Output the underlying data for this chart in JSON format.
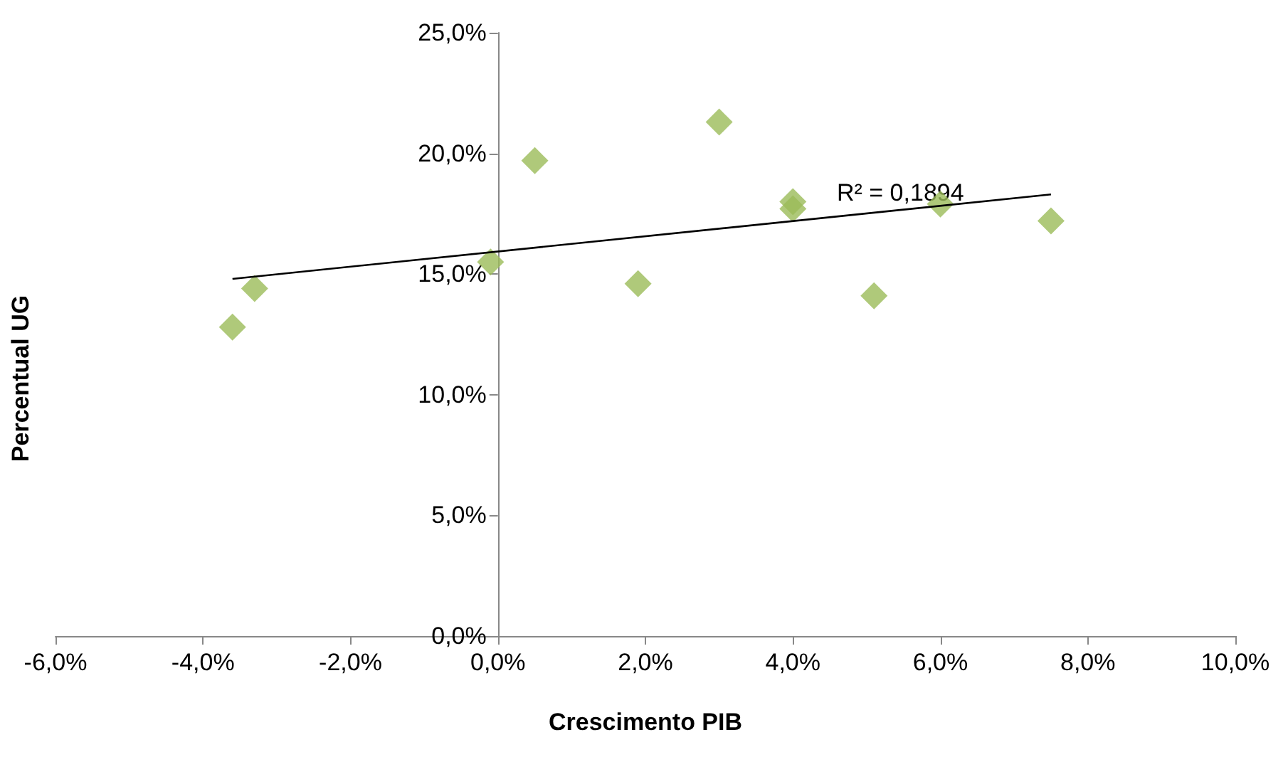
{
  "chart_data": {
    "type": "scatter",
    "xlabel": "Crescimento PIB",
    "ylabel": "Percentual UG",
    "annotations": [
      "R² = 0,1894"
    ],
    "series": [
      {
        "color": "#9bbb59",
        "x": [
          -3.6,
          -3.3,
          -0.1,
          0.5,
          1.9,
          3.0,
          4.0,
          4.0,
          5.1,
          6.0,
          7.5
        ],
        "values": [
          12.8,
          14.4,
          15.5,
          19.7,
          14.6,
          21.3,
          18.0,
          17.7,
          14.1,
          17.9,
          17.2
        ]
      },
      {
        "type": "line",
        "marker": "none",
        "color": "#000000",
        "x": [
          -3.6,
          7.5
        ],
        "values": [
          14.8,
          18.3
        ]
      }
    ],
    "marker": "diamond",
    "grid": false,
    "xlim": [
      -6,
      10
    ],
    "xticks": [
      {
        "value": -6,
        "label": "-6,0%"
      },
      {
        "value": -4,
        "label": "-4,0%"
      },
      {
        "value": -2,
        "label": "-2,0%"
      },
      {
        "value": 0,
        "label": "0,0%"
      },
      {
        "value": 2,
        "label": "2,0%"
      },
      {
        "value": 4,
        "label": "4,0%"
      },
      {
        "value": 6,
        "label": "6,0%"
      },
      {
        "value": 8,
        "label": "8,0%"
      },
      {
        "value": 10,
        "label": "10,0%"
      }
    ],
    "ylim": [
      0,
      25
    ],
    "yticks": [
      {
        "value": 0,
        "label": "0,0%"
      },
      {
        "value": 5,
        "label": "5,0%"
      },
      {
        "value": 10,
        "label": "10,0%"
      },
      {
        "value": 15,
        "label": "15,0%"
      },
      {
        "value": 20,
        "label": "20,0%"
      },
      {
        "value": 25,
        "label": "25,0%"
      }
    ]
  }
}
